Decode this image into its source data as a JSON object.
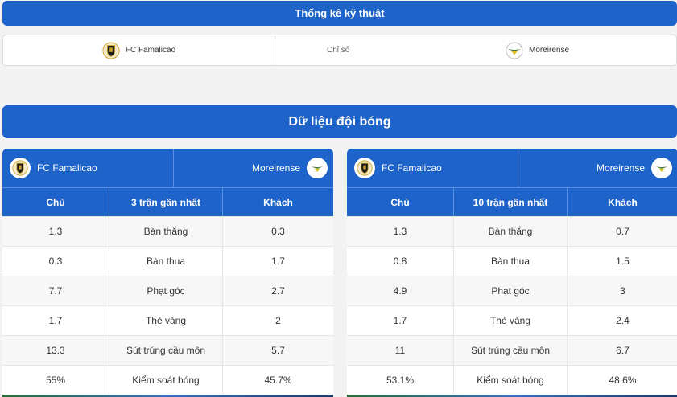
{
  "top": {
    "title": "Thống kê kỹ thuật"
  },
  "compare": {
    "home": "FC Famalicao",
    "middle": "Chỉ số",
    "away": "Moreirense"
  },
  "section": {
    "title": "Dữ liệu đội bóng"
  },
  "colors": {
    "primary": "#1d63c9",
    "famalicao_gold": "#c9a227",
    "moreirense_green": "#3e7d2f"
  },
  "icons": {
    "home": "famalicao-crest-icon",
    "away": "moreirense-crest-icon"
  },
  "panels": [
    {
      "home_team": "FC Famalicao",
      "away_team": "Moreirense",
      "headers": [
        "Chủ",
        "3 trận gần nhất",
        "Khách"
      ],
      "rows": [
        {
          "home": "1.3",
          "stat": "Bàn thắng",
          "away": "0.3"
        },
        {
          "home": "0.3",
          "stat": "Bàn thua",
          "away": "1.7"
        },
        {
          "home": "7.7",
          "stat": "Phạt góc",
          "away": "2.7"
        },
        {
          "home": "1.7",
          "stat": "Thẻ vàng",
          "away": "2"
        },
        {
          "home": "13.3",
          "stat": "Sút trúng cầu môn",
          "away": "5.7"
        },
        {
          "home": "55%",
          "stat": "Kiểm soát bóng",
          "away": "45.7%"
        }
      ]
    },
    {
      "home_team": "FC Famalicao",
      "away_team": "Moreirense",
      "headers": [
        "Chủ",
        "10 trận gần nhất",
        "Khách"
      ],
      "rows": [
        {
          "home": "1.3",
          "stat": "Bàn thắng",
          "away": "0.7"
        },
        {
          "home": "0.8",
          "stat": "Bàn thua",
          "away": "1.5"
        },
        {
          "home": "4.9",
          "stat": "Phạt góc",
          "away": "3"
        },
        {
          "home": "1.7",
          "stat": "Thẻ vàng",
          "away": "2.4"
        },
        {
          "home": "11",
          "stat": "Sút trúng cầu môn",
          "away": "6.7"
        },
        {
          "home": "53.1%",
          "stat": "Kiểm soát bóng",
          "away": "48.6%"
        }
      ]
    }
  ]
}
